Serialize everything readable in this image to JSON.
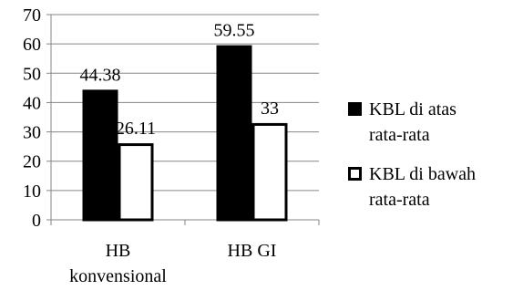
{
  "chart_data": {
    "type": "bar",
    "title": "",
    "xlabel": "",
    "ylabel": "",
    "ylim": [
      0,
      70
    ],
    "yticks": [
      "0",
      "10",
      "20",
      "30",
      "40",
      "50",
      "60",
      "70"
    ],
    "grid": true,
    "legend_position": "right",
    "categories": [
      {
        "lines": [
          "HB",
          "konvensional"
        ]
      },
      {
        "lines": [
          "HB GI"
        ]
      }
    ],
    "series": [
      {
        "name": "KBL di atas rata-rata",
        "legend_lines": [
          "KBL di atas",
          "rata-rata"
        ],
        "values": [
          44.38,
          59.55
        ],
        "labels": [
          "44.38",
          "59.55"
        ],
        "fill": "#000000",
        "stroke": "#000000"
      },
      {
        "name": "KBL di bawah rata-rata",
        "legend_lines": [
          "KBL di bawah",
          "rata-rata"
        ],
        "values": [
          26.11,
          33
        ],
        "labels": [
          "26.11",
          "33"
        ],
        "fill": "#ffffff",
        "stroke": "#000000"
      }
    ]
  }
}
